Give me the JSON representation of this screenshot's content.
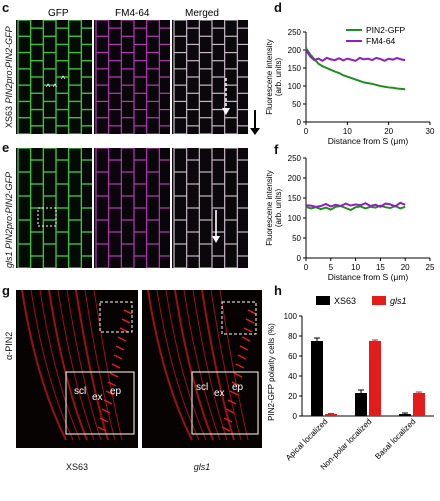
{
  "panels": {
    "c": {
      "label": "c",
      "side_label_pre": "XS63",
      "side_label_italic": "PIN2pro:PIN2-GFP"
    },
    "d": {
      "label": "d"
    },
    "e": {
      "label": "e",
      "side_label_pre": "gls1",
      "side_label_italic": "PIN2pro:PIN2-GFP"
    },
    "f": {
      "label": "f"
    },
    "g": {
      "label": "g",
      "side_label": "α-PIN2",
      "captions": [
        "XS63",
        "gls1"
      ],
      "annotations": [
        "scl",
        "ex",
        "ep"
      ]
    },
    "h": {
      "label": "h"
    }
  },
  "columns": [
    "GFP",
    "FM4-64",
    "Merged"
  ],
  "colors": {
    "gfp": "#3fbf3f",
    "fm": "#b43cb4",
    "merged": "#d9d9d9",
    "xs63": "#000000",
    "gls1": "#e21b1b",
    "pin2_line": "#1f8f1f",
    "fm_line": "#8f1fbf"
  },
  "chart_data": [
    {
      "type": "line",
      "id": "d",
      "ylabel": "Fluorescene intensity\n(arb. units)",
      "xlabel": "Distance from S (μm)",
      "xlim": [
        0,
        30
      ],
      "ylim": [
        0,
        250
      ],
      "xticks": [
        0,
        10,
        20,
        30
      ],
      "yticks": [
        0,
        50,
        100,
        150,
        200,
        250
      ],
      "legend": "top-right",
      "series": [
        {
          "name": "PIN2-GFP",
          "x": [
            0,
            1,
            2,
            3,
            4,
            5,
            6,
            7,
            8,
            9,
            10,
            11,
            12,
            13,
            14,
            15,
            16,
            17,
            18,
            19,
            20,
            21,
            22,
            23,
            24
          ],
          "y": [
            205,
            188,
            175,
            162,
            155,
            150,
            145,
            140,
            136,
            130,
            126,
            122,
            118,
            114,
            110,
            108,
            106,
            103,
            100,
            98,
            96,
            95,
            93,
            92,
            91
          ]
        },
        {
          "name": "FM4-64",
          "x": [
            0,
            1,
            2,
            3,
            4,
            5,
            6,
            7,
            8,
            9,
            10,
            11,
            12,
            13,
            14,
            15,
            16,
            17,
            18,
            19,
            20,
            21,
            22,
            23,
            24
          ],
          "y": [
            200,
            182,
            172,
            176,
            170,
            178,
            174,
            172,
            177,
            171,
            176,
            173,
            170,
            178,
            174,
            176,
            172,
            178,
            175,
            170,
            176,
            173,
            178,
            174,
            172
          ]
        }
      ]
    },
    {
      "type": "line",
      "id": "f",
      "ylabel": "Fluorescene intensity\n(arb. units)",
      "xlabel": "Distance from S (μm)",
      "xlim": [
        0,
        25
      ],
      "ylim": [
        0,
        250
      ],
      "xticks": [
        0,
        5,
        10,
        15,
        20,
        25
      ],
      "yticks": [
        0,
        50,
        100,
        150,
        200,
        250
      ],
      "series": [
        {
          "name": "PIN2-GFP",
          "x": [
            0,
            1,
            2,
            3,
            4,
            5,
            6,
            7,
            8,
            9,
            10,
            11,
            12,
            13,
            14,
            15,
            16,
            17,
            18,
            19,
            20
          ],
          "y": [
            128,
            124,
            127,
            122,
            126,
            121,
            128,
            130,
            125,
            120,
            127,
            129,
            124,
            128,
            126,
            131,
            127,
            125,
            130,
            124,
            128
          ]
        },
        {
          "name": "FM4-64",
          "x": [
            0,
            1,
            2,
            3,
            4,
            5,
            6,
            7,
            8,
            9,
            10,
            11,
            12,
            13,
            14,
            15,
            16,
            17,
            18,
            19,
            20
          ],
          "y": [
            132,
            131,
            128,
            130,
            135,
            129,
            133,
            130,
            136,
            131,
            134,
            132,
            137,
            130,
            133,
            128,
            136,
            134,
            129,
            138,
            133
          ]
        }
      ]
    },
    {
      "type": "bar",
      "id": "h",
      "ylabel": "PIN2-GFP polarity cells (%)",
      "categories": [
        "Apical localized",
        "Non-polar localized",
        "Basal localized"
      ],
      "ylim": [
        0,
        100
      ],
      "yticks": [
        0,
        20,
        40,
        60,
        80,
        100
      ],
      "legend": "top",
      "series": [
        {
          "name": "XS63",
          "values": [
            75,
            23,
            2
          ],
          "errors": [
            3,
            3,
            1
          ]
        },
        {
          "name": "gls1",
          "values": [
            2,
            75,
            23
          ],
          "errors": [
            0.5,
            1,
            1
          ]
        }
      ]
    }
  ]
}
